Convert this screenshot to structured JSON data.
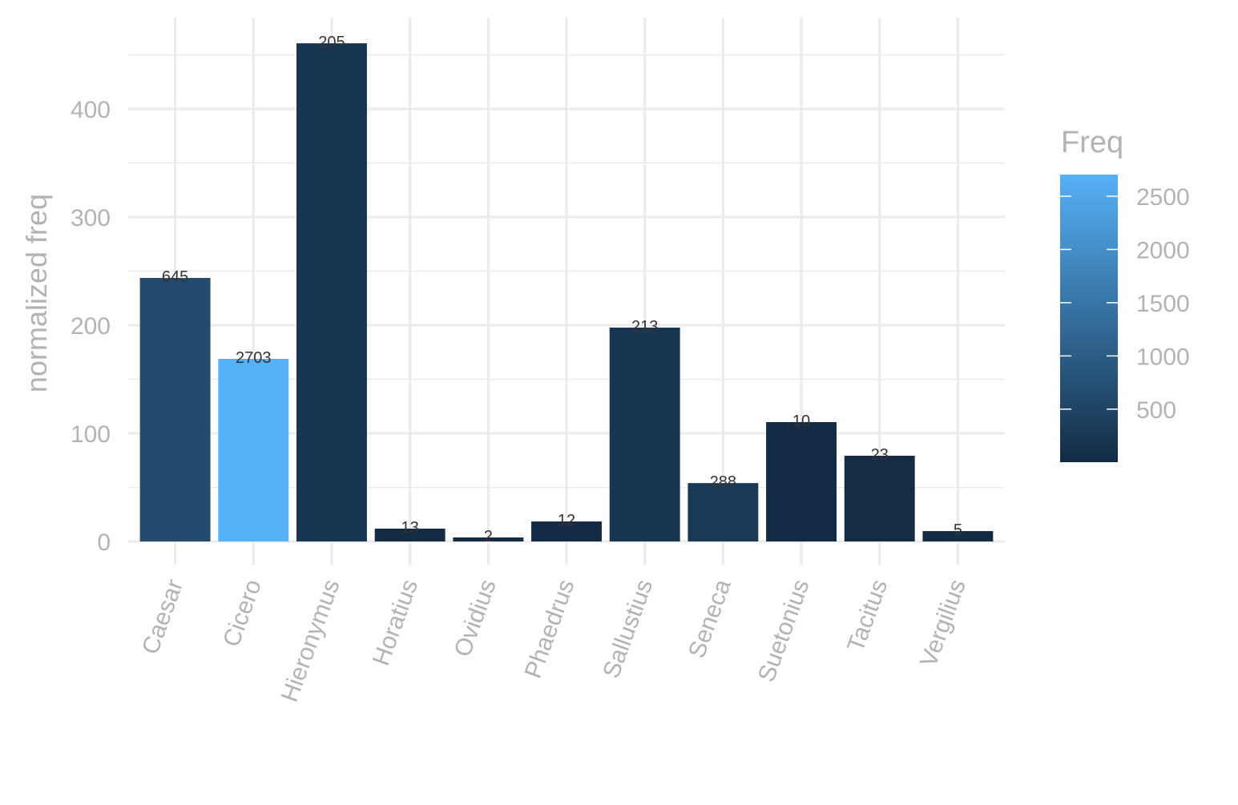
{
  "chart_data": {
    "type": "bar",
    "title": "",
    "xlabel": "",
    "ylabel": "normalized freq",
    "ylim": [
      -20,
      460
    ],
    "yticks": [
      0,
      100,
      200,
      300,
      400
    ],
    "grid": true,
    "categories": [
      "Caesar",
      "Cicero",
      "Hieronymus",
      "Horatius",
      "Ovidius",
      "Phaedrus",
      "Sallustius",
      "Seneca",
      "Suetonius",
      "Tacitus",
      "Vergilius"
    ],
    "values": [
      243.7,
      168.9,
      460.7,
      11.9,
      3.7,
      18.5,
      197.8,
      54.0,
      110.4,
      79.3,
      9.6
    ],
    "labels": [
      "645",
      "2703",
      "205",
      "13",
      "2",
      "12",
      "213",
      "288",
      "10",
      "23",
      "5"
    ],
    "fill_values": [
      645,
      2703,
      205,
      13,
      2,
      12,
      213,
      288,
      10,
      23,
      5
    ],
    "legend": {
      "title": "Freq",
      "placement": "right",
      "range": [
        2,
        2703
      ],
      "ticks": [
        500,
        1000,
        1500,
        2000,
        2500
      ],
      "tick_labels": [
        "500",
        "1000",
        "1500",
        "2000",
        "2500"
      ],
      "low_color": "#132B43",
      "high_color": "#56B1F7"
    }
  }
}
